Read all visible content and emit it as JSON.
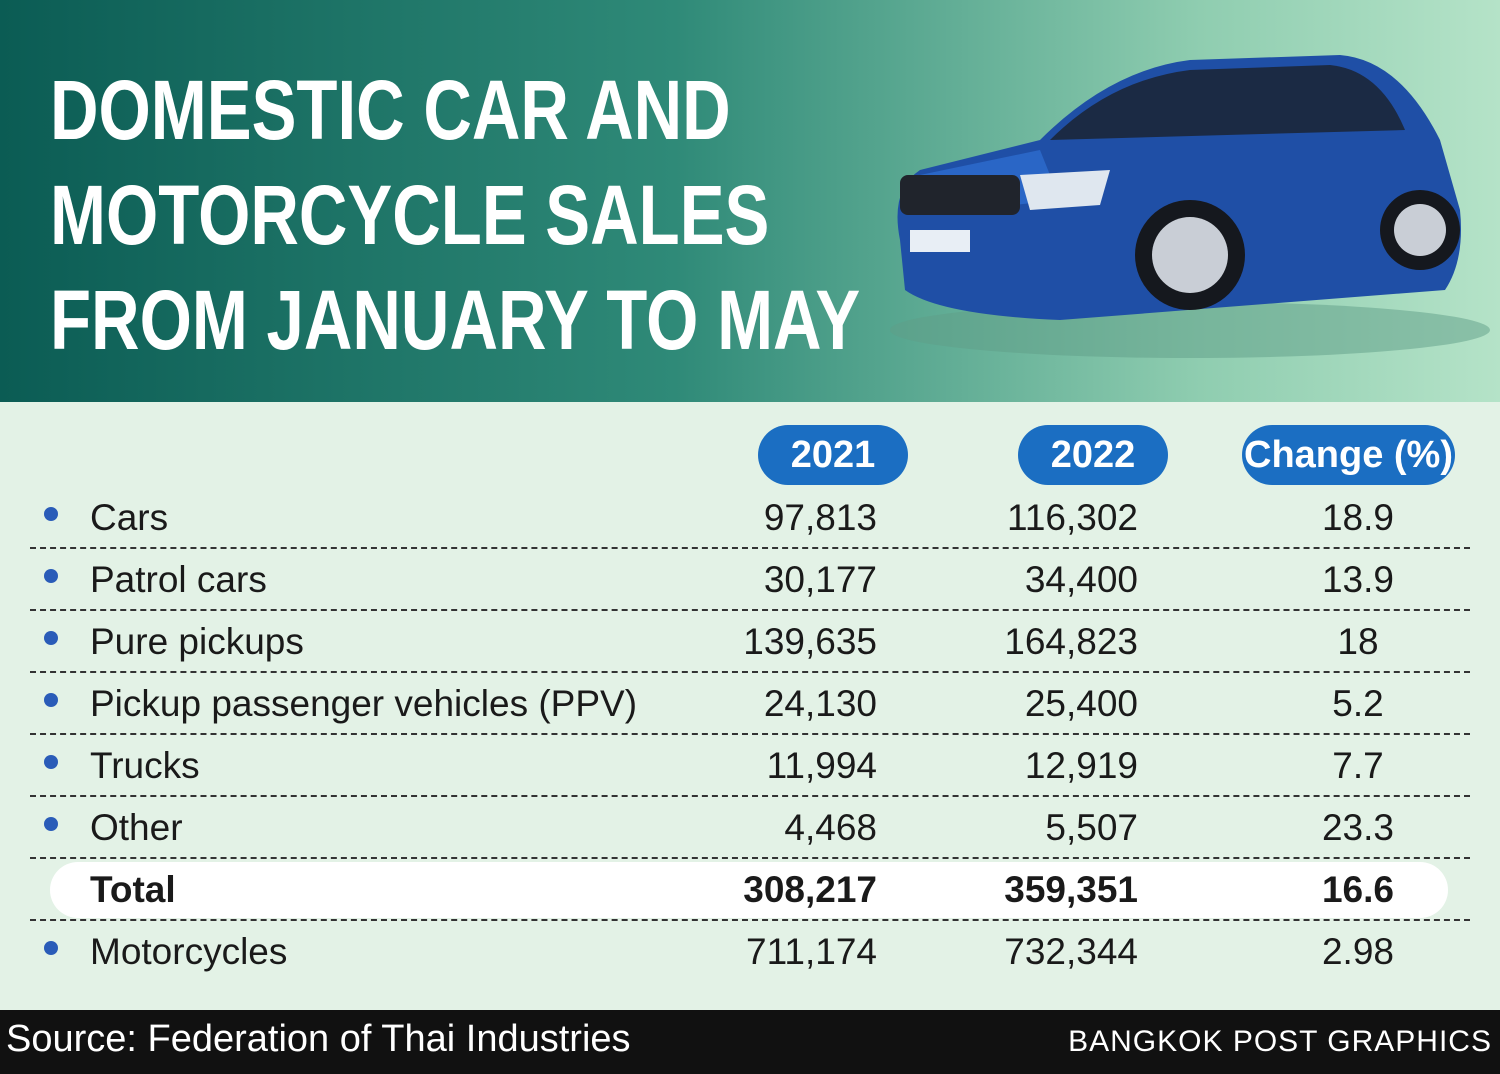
{
  "header": {
    "title_lines": [
      "DOMESTIC CAR AND",
      "MOTORCYCLE SALES",
      "FROM JANUARY TO MAY"
    ]
  },
  "table": {
    "columns": [
      "2021",
      "2022",
      "Change (%)"
    ],
    "rows": [
      {
        "label": "Cars",
        "cells": [
          "97,813",
          "116,302",
          "18.9"
        ]
      },
      {
        "label": "Patrol cars",
        "cells": [
          "30,177",
          "34,400",
          "13.9"
        ]
      },
      {
        "label": "Pure pickups",
        "cells": [
          "139,635",
          "164,823",
          "18"
        ]
      },
      {
        "label": "Pickup passenger vehicles (PPV)",
        "cells": [
          "24,130",
          "25,400",
          "5.2"
        ]
      },
      {
        "label": "Trucks",
        "cells": [
          "11,994",
          "12,919",
          "7.7"
        ]
      },
      {
        "label": "Other",
        "cells": [
          "4,468",
          "5,507",
          "23.3"
        ]
      },
      {
        "label": "Total",
        "cells": [
          "308,217",
          "359,351",
          "16.6"
        ]
      },
      {
        "label": "Motorcycles",
        "cells": [
          "711,174",
          "732,344",
          "2.98"
        ]
      }
    ]
  },
  "footer": {
    "source": "Source: Federation of Thai Industries",
    "credit": "BANGKOK POST GRAPHICS"
  }
}
